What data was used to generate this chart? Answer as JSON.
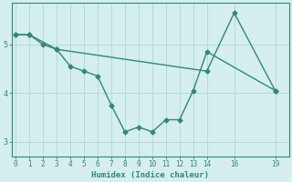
{
  "line1_x": [
    0,
    1,
    2,
    3,
    4,
    5,
    6,
    7,
    8,
    9,
    10,
    11,
    12,
    13,
    14,
    19
  ],
  "line1_y": [
    5.2,
    5.2,
    5.0,
    4.9,
    4.55,
    4.45,
    4.35,
    3.75,
    3.2,
    3.3,
    3.2,
    3.45,
    3.45,
    4.05,
    4.85,
    4.05
  ],
  "line2_x": [
    0,
    1,
    3,
    14,
    16,
    19
  ],
  "line2_y": [
    5.2,
    5.2,
    4.9,
    4.45,
    5.65,
    4.05
  ],
  "color": "#2e8b6e",
  "bg_color": "#d5eeee",
  "grid_color": "#aed8d8",
  "xlabel": "Humidex (Indice chaleur)",
  "ylim": [
    2.7,
    5.85
  ],
  "xlim": [
    -0.3,
    20.0
  ],
  "yticks": [
    3,
    4,
    5
  ],
  "xticks": [
    0,
    1,
    2,
    3,
    4,
    5,
    6,
    7,
    8,
    9,
    10,
    11,
    12,
    13,
    14,
    16,
    19
  ],
  "figsize": [
    3.2,
    2.0
  ],
  "dpi": 100,
  "tick_fontsize": 5.5,
  "label_fontsize": 6.5,
  "linewidth": 1.0,
  "markersize": 2.5
}
